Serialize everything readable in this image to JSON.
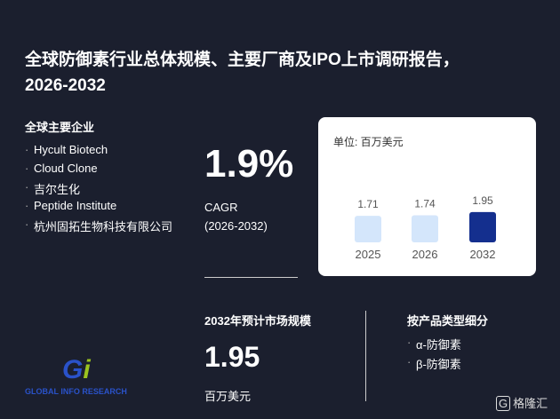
{
  "header": {
    "title_line1": "全球防御素行业总体规模、主要厂商及IPO上市调研报告，",
    "title_line2": "2026-2032"
  },
  "companies": {
    "heading": "全球主要企业",
    "items": [
      "Hycult Biotech",
      "Cloud Clone",
      "吉尔生化",
      "Peptide Institute",
      "杭州固拓生物科技有限公司"
    ]
  },
  "cagr": {
    "value": "1.9%",
    "label": "CAGR",
    "period": "(2026-2032)"
  },
  "chart_data": {
    "type": "bar",
    "unit_label": "单位: 百万美元",
    "categories": [
      "2025",
      "2026",
      "2032"
    ],
    "values": [
      1.71,
      1.74,
      1.95
    ],
    "colors": [
      "#d4e6fb",
      "#d4e6fb",
      "#142f8e"
    ]
  },
  "market": {
    "heading": "2032年预计市场规模",
    "value": "1.95",
    "unit": "百万美元"
  },
  "segments": {
    "heading": "按产品类型细分",
    "items": [
      "α-防御素",
      "β-防御素"
    ]
  },
  "logo": {
    "text": "GLOBAL INFO RESEARCH"
  },
  "brand": {
    "text": "格隆汇"
  }
}
